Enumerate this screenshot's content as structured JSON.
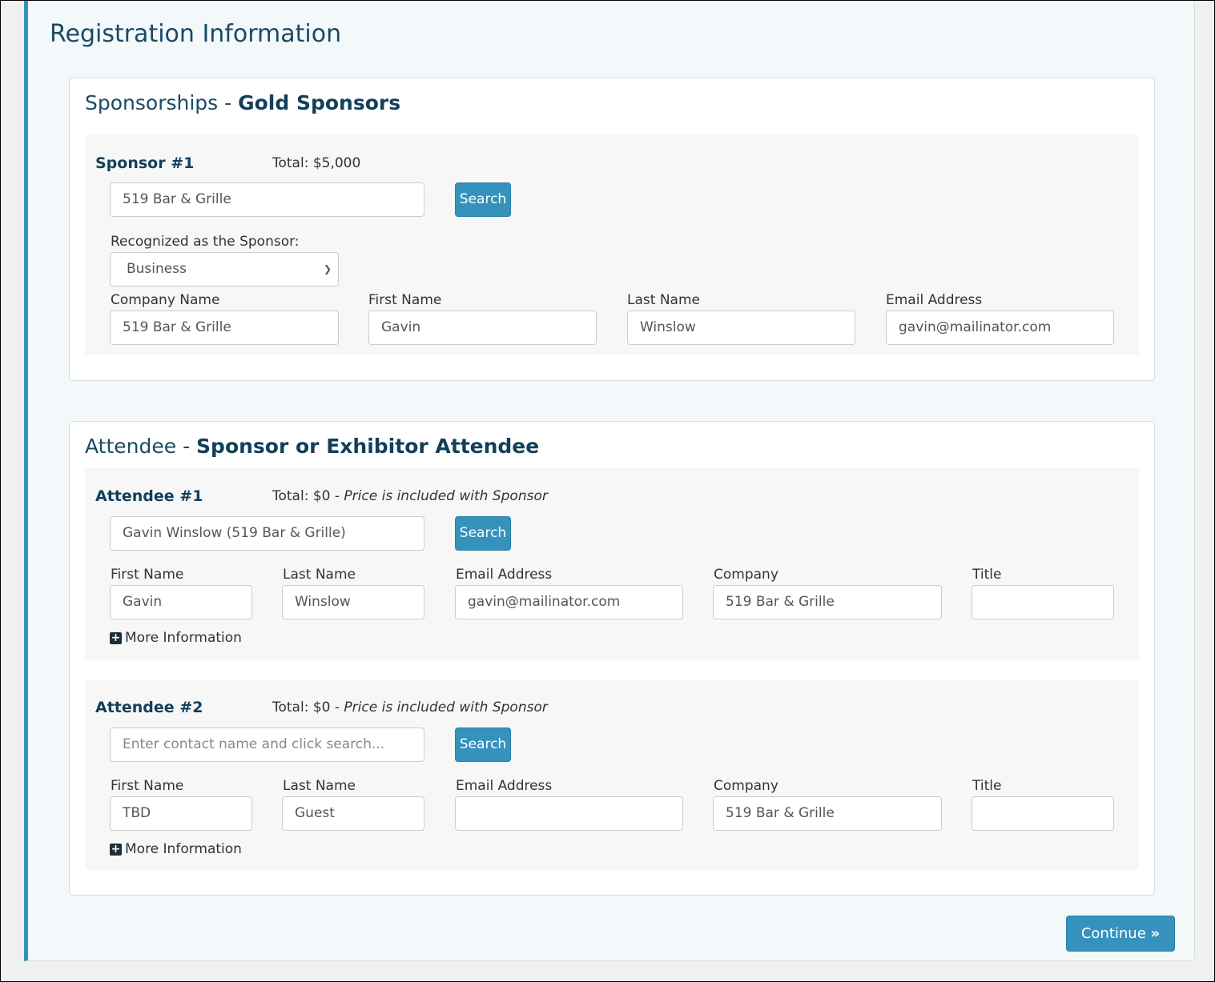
{
  "title": "Registration Information",
  "sponsorships": {
    "prefix": "Sponsorships - ",
    "type": "Gold Sponsors",
    "sponsor": {
      "label": "Sponsor #1",
      "total": "Total: $5,000",
      "search_value": "519 Bar & Grille",
      "search_label": "Search",
      "recognized_label": "Recognized as the Sponsor:",
      "recognized_value": "Business",
      "fields": [
        {
          "label": "Company Name",
          "value": "519 Bar & Grille"
        },
        {
          "label": "First Name",
          "value": "Gavin"
        },
        {
          "label": "Last Name",
          "value": "Winslow"
        },
        {
          "label": "Email Address",
          "value": "gavin@mailinator.com"
        }
      ]
    }
  },
  "attendees": {
    "prefix": "Attendee - ",
    "type": "Sponsor or Exhibitor Attendee",
    "items": [
      {
        "label": "Attendee #1",
        "total": "Total: $0",
        "note": "Price is included with Sponsor",
        "search_value": "Gavin Winslow (519 Bar & Grille)",
        "search_placeholder": "",
        "search_label": "Search",
        "fields": [
          {
            "label": "First Name",
            "value": "Gavin"
          },
          {
            "label": "Last Name",
            "value": "Winslow"
          },
          {
            "label": "Email Address",
            "value": "gavin@mailinator.com"
          },
          {
            "label": "Company",
            "value": "519 Bar & Grille"
          },
          {
            "label": "Title",
            "value": ""
          }
        ],
        "more": "More Information"
      },
      {
        "label": "Attendee #2",
        "total": "Total: $0",
        "note": "Price is included with Sponsor",
        "search_value": "",
        "search_placeholder": "Enter contact name and click search...",
        "search_label": "Search",
        "fields": [
          {
            "label": "First Name",
            "value": "TBD"
          },
          {
            "label": "Last Name",
            "value": "Guest"
          },
          {
            "label": "Email Address",
            "value": ""
          },
          {
            "label": "Company",
            "value": "519 Bar & Grille"
          },
          {
            "label": "Title",
            "value": ""
          }
        ],
        "more": "More Information"
      }
    ]
  },
  "continue_label": "Continue",
  "colors": {
    "accent": "#3592bd",
    "heading": "#1b4a63"
  }
}
